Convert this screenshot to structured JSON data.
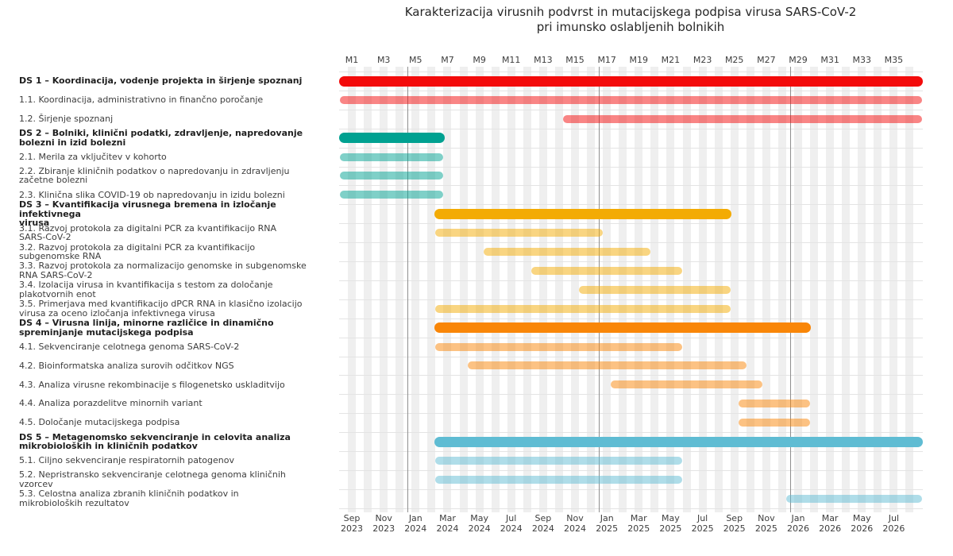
{
  "title": {
    "line1": "Karakterizacija virusnih podvrst in mutacijskega podpisa virusa SARS-CoV-2",
    "line2": "pri imunsko oslabljenih bolnikih"
  },
  "chart_data": {
    "type": "gantt",
    "title": "Karakterizacija virusnih podvrst in mutacijskega podpisa virusa SARS-CoV-2 pri imunsko oslabljenih bolnikih",
    "time_axis": {
      "unit": "project-month",
      "start": 1,
      "end": 36,
      "start_date": "Sep 2023",
      "end_date": "Aug 2026",
      "year_boundary_months": [
        5,
        17,
        29
      ]
    },
    "top_axis_labels": [
      "M1",
      "M3",
      "M5",
      "M7",
      "M9",
      "M11",
      "M13",
      "M15",
      "M17",
      "M19",
      "M21",
      "M23",
      "M25",
      "M27",
      "M29",
      "M31",
      "M33",
      "M35"
    ],
    "bottom_axis_labels": [
      [
        "Sep",
        "2023"
      ],
      [
        "Nov",
        "2023"
      ],
      [
        "Jan",
        "2024"
      ],
      [
        "Mar",
        "2024"
      ],
      [
        "May",
        "2024"
      ],
      [
        "Jul",
        "2024"
      ],
      [
        "Sep",
        "2024"
      ],
      [
        "Nov",
        "2024"
      ],
      [
        "Jan",
        "2025"
      ],
      [
        "Mar",
        "2025"
      ],
      [
        "May",
        "2025"
      ],
      [
        "Jul",
        "2025"
      ],
      [
        "Sep",
        "2025"
      ],
      [
        "Nov",
        "2025"
      ],
      [
        "Jan",
        "2026"
      ],
      [
        "Mar",
        "2026"
      ],
      [
        "May",
        "2026"
      ],
      [
        "Jul",
        "2026"
      ]
    ],
    "group_colors": {
      "ds1": "#f30b0b",
      "ds2": "#00a191",
      "ds3": "#f3ab04",
      "ds4": "#f98608",
      "ds5": "#5fbcd3"
    },
    "tasks": [
      {
        "id": "DS1",
        "group": "ds1",
        "kind": "main",
        "bold": true,
        "start": 1,
        "end": 36,
        "lines": [
          "DS 1 – Koordinacija, vodenje projekta in širjenje spoznanj"
        ]
      },
      {
        "id": "1.1",
        "group": "ds1",
        "kind": "sub",
        "bold": false,
        "start": 1,
        "end": 36,
        "lines": [
          "1.1. Koordinacija, administrativno in finančno poročanje"
        ]
      },
      {
        "id": "1.2",
        "group": "ds1",
        "kind": "sub",
        "bold": false,
        "start": 15,
        "end": 36,
        "lines": [
          "1.2. Širjenje spoznanj"
        ]
      },
      {
        "id": "DS2",
        "group": "ds2",
        "kind": "main",
        "bold": true,
        "start": 1,
        "end": 6,
        "lines": [
          "DS 2 – Bolniki, klinični podatki, zdravljenje, napredovanje",
          "bolezni in izid bolezni"
        ]
      },
      {
        "id": "2.1",
        "group": "ds2",
        "kind": "sub",
        "bold": false,
        "start": 1,
        "end": 6,
        "lines": [
          "2.1. Merila za vključitev v kohorto"
        ]
      },
      {
        "id": "2.2",
        "group": "ds2",
        "kind": "sub",
        "bold": false,
        "start": 1,
        "end": 6,
        "lines": [
          "2.2. Zbiranje kliničnih podatkov o napredovanju in zdravljenju",
          "začetne bolezni"
        ]
      },
      {
        "id": "2.3",
        "group": "ds2",
        "kind": "sub",
        "bold": false,
        "start": 1,
        "end": 6,
        "lines": [
          "2.3. Klinična slika COVID-19 ob napredovanju in izidu bolezni"
        ]
      },
      {
        "id": "DS3",
        "group": "ds3",
        "kind": "main",
        "bold": true,
        "start": 7,
        "end": 24,
        "lines": [
          "DS 3 – Kvantifikacija virusnega bremena in izločanje infektivnega",
          "virusa"
        ]
      },
      {
        "id": "3.1",
        "group": "ds3",
        "kind": "sub",
        "bold": false,
        "start": 7,
        "end": 16,
        "lines": [
          "3.1. Razvoj protokola za digitalni PCR za kvantifikacijo RNA",
          "SARS-CoV-2"
        ]
      },
      {
        "id": "3.2",
        "group": "ds3",
        "kind": "sub",
        "bold": false,
        "start": 10,
        "end": 19,
        "lines": [
          "3.2. Razvoj protokola za digitalni PCR za kvantifikacijo",
          "subgenomske RNA"
        ]
      },
      {
        "id": "3.3",
        "group": "ds3",
        "kind": "sub",
        "bold": false,
        "start": 13,
        "end": 21,
        "lines": [
          "3.3. Razvoj protokola za normalizacijo genomske in subgenomske",
          "RNA SARS-CoV-2"
        ]
      },
      {
        "id": "3.4",
        "group": "ds3",
        "kind": "sub",
        "bold": false,
        "start": 16,
        "end": 24,
        "lines": [
          "3.4. Izolacija virusa in kvantifikacija s testom za določanje",
          "plakotvornih enot"
        ]
      },
      {
        "id": "3.5",
        "group": "ds3",
        "kind": "sub",
        "bold": false,
        "start": 7,
        "end": 24,
        "lines": [
          "3.5. Primerjava med kvantifikacijo dPCR RNA in klasično izolacijo",
          "virusa za oceno izločanja infektivnega virusa"
        ]
      },
      {
        "id": "DS4",
        "group": "ds4",
        "kind": "main",
        "bold": true,
        "start": 7,
        "end": 29,
        "lines": [
          "DS 4 – Virusna linija, minorne različice in dinamično",
          "spreminjanje mutacijskega podpisa"
        ]
      },
      {
        "id": "4.1",
        "group": "ds4",
        "kind": "sub",
        "bold": false,
        "start": 7,
        "end": 21,
        "lines": [
          "4.1. Sekvenciranje celotnega genoma SARS-CoV-2"
        ]
      },
      {
        "id": "4.2",
        "group": "ds4",
        "kind": "sub",
        "bold": false,
        "start": 9,
        "end": 25,
        "lines": [
          "4.2. Bioinformatska analiza surovih odčitkov NGS"
        ]
      },
      {
        "id": "4.3",
        "group": "ds4",
        "kind": "sub",
        "bold": false,
        "start": 18,
        "end": 26,
        "lines": [
          "4.3. Analiza virusne rekombinacije s filogenetsko uskladitvijo"
        ]
      },
      {
        "id": "4.4",
        "group": "ds4",
        "kind": "sub",
        "bold": false,
        "start": 26,
        "end": 29,
        "lines": [
          "4.4. Analiza porazdelitve minornih variant"
        ]
      },
      {
        "id": "4.5",
        "group": "ds4",
        "kind": "sub",
        "bold": false,
        "start": 26,
        "end": 29,
        "lines": [
          "4.5. Določanje mutacijskega podpisa"
        ]
      },
      {
        "id": "DS5",
        "group": "ds5",
        "kind": "main",
        "bold": true,
        "start": 7,
        "end": 36,
        "lines": [
          "DS 5 – Metagenomsko sekvenciranje in celovita analiza",
          "mikrobioloških in kliničnih podatkov"
        ]
      },
      {
        "id": "5.1",
        "group": "ds5",
        "kind": "sub",
        "bold": false,
        "start": 7,
        "end": 21,
        "lines": [
          "5.1. Ciljno sekvenciranje respiratornih patogenov"
        ]
      },
      {
        "id": "5.2",
        "group": "ds5",
        "kind": "sub",
        "bold": false,
        "start": 7,
        "end": 21,
        "lines": [
          "5.2. Nepristransko sekvenciranje celotnega genoma kliničnih",
          "vzorcev"
        ]
      },
      {
        "id": "5.3",
        "group": "ds5",
        "kind": "sub",
        "bold": false,
        "start": 29,
        "end": 36,
        "lines": [
          "5.3. Celostna analiza zbranih kliničnih podatkov in",
          "mikrobioloških rezultatov"
        ]
      }
    ]
  }
}
